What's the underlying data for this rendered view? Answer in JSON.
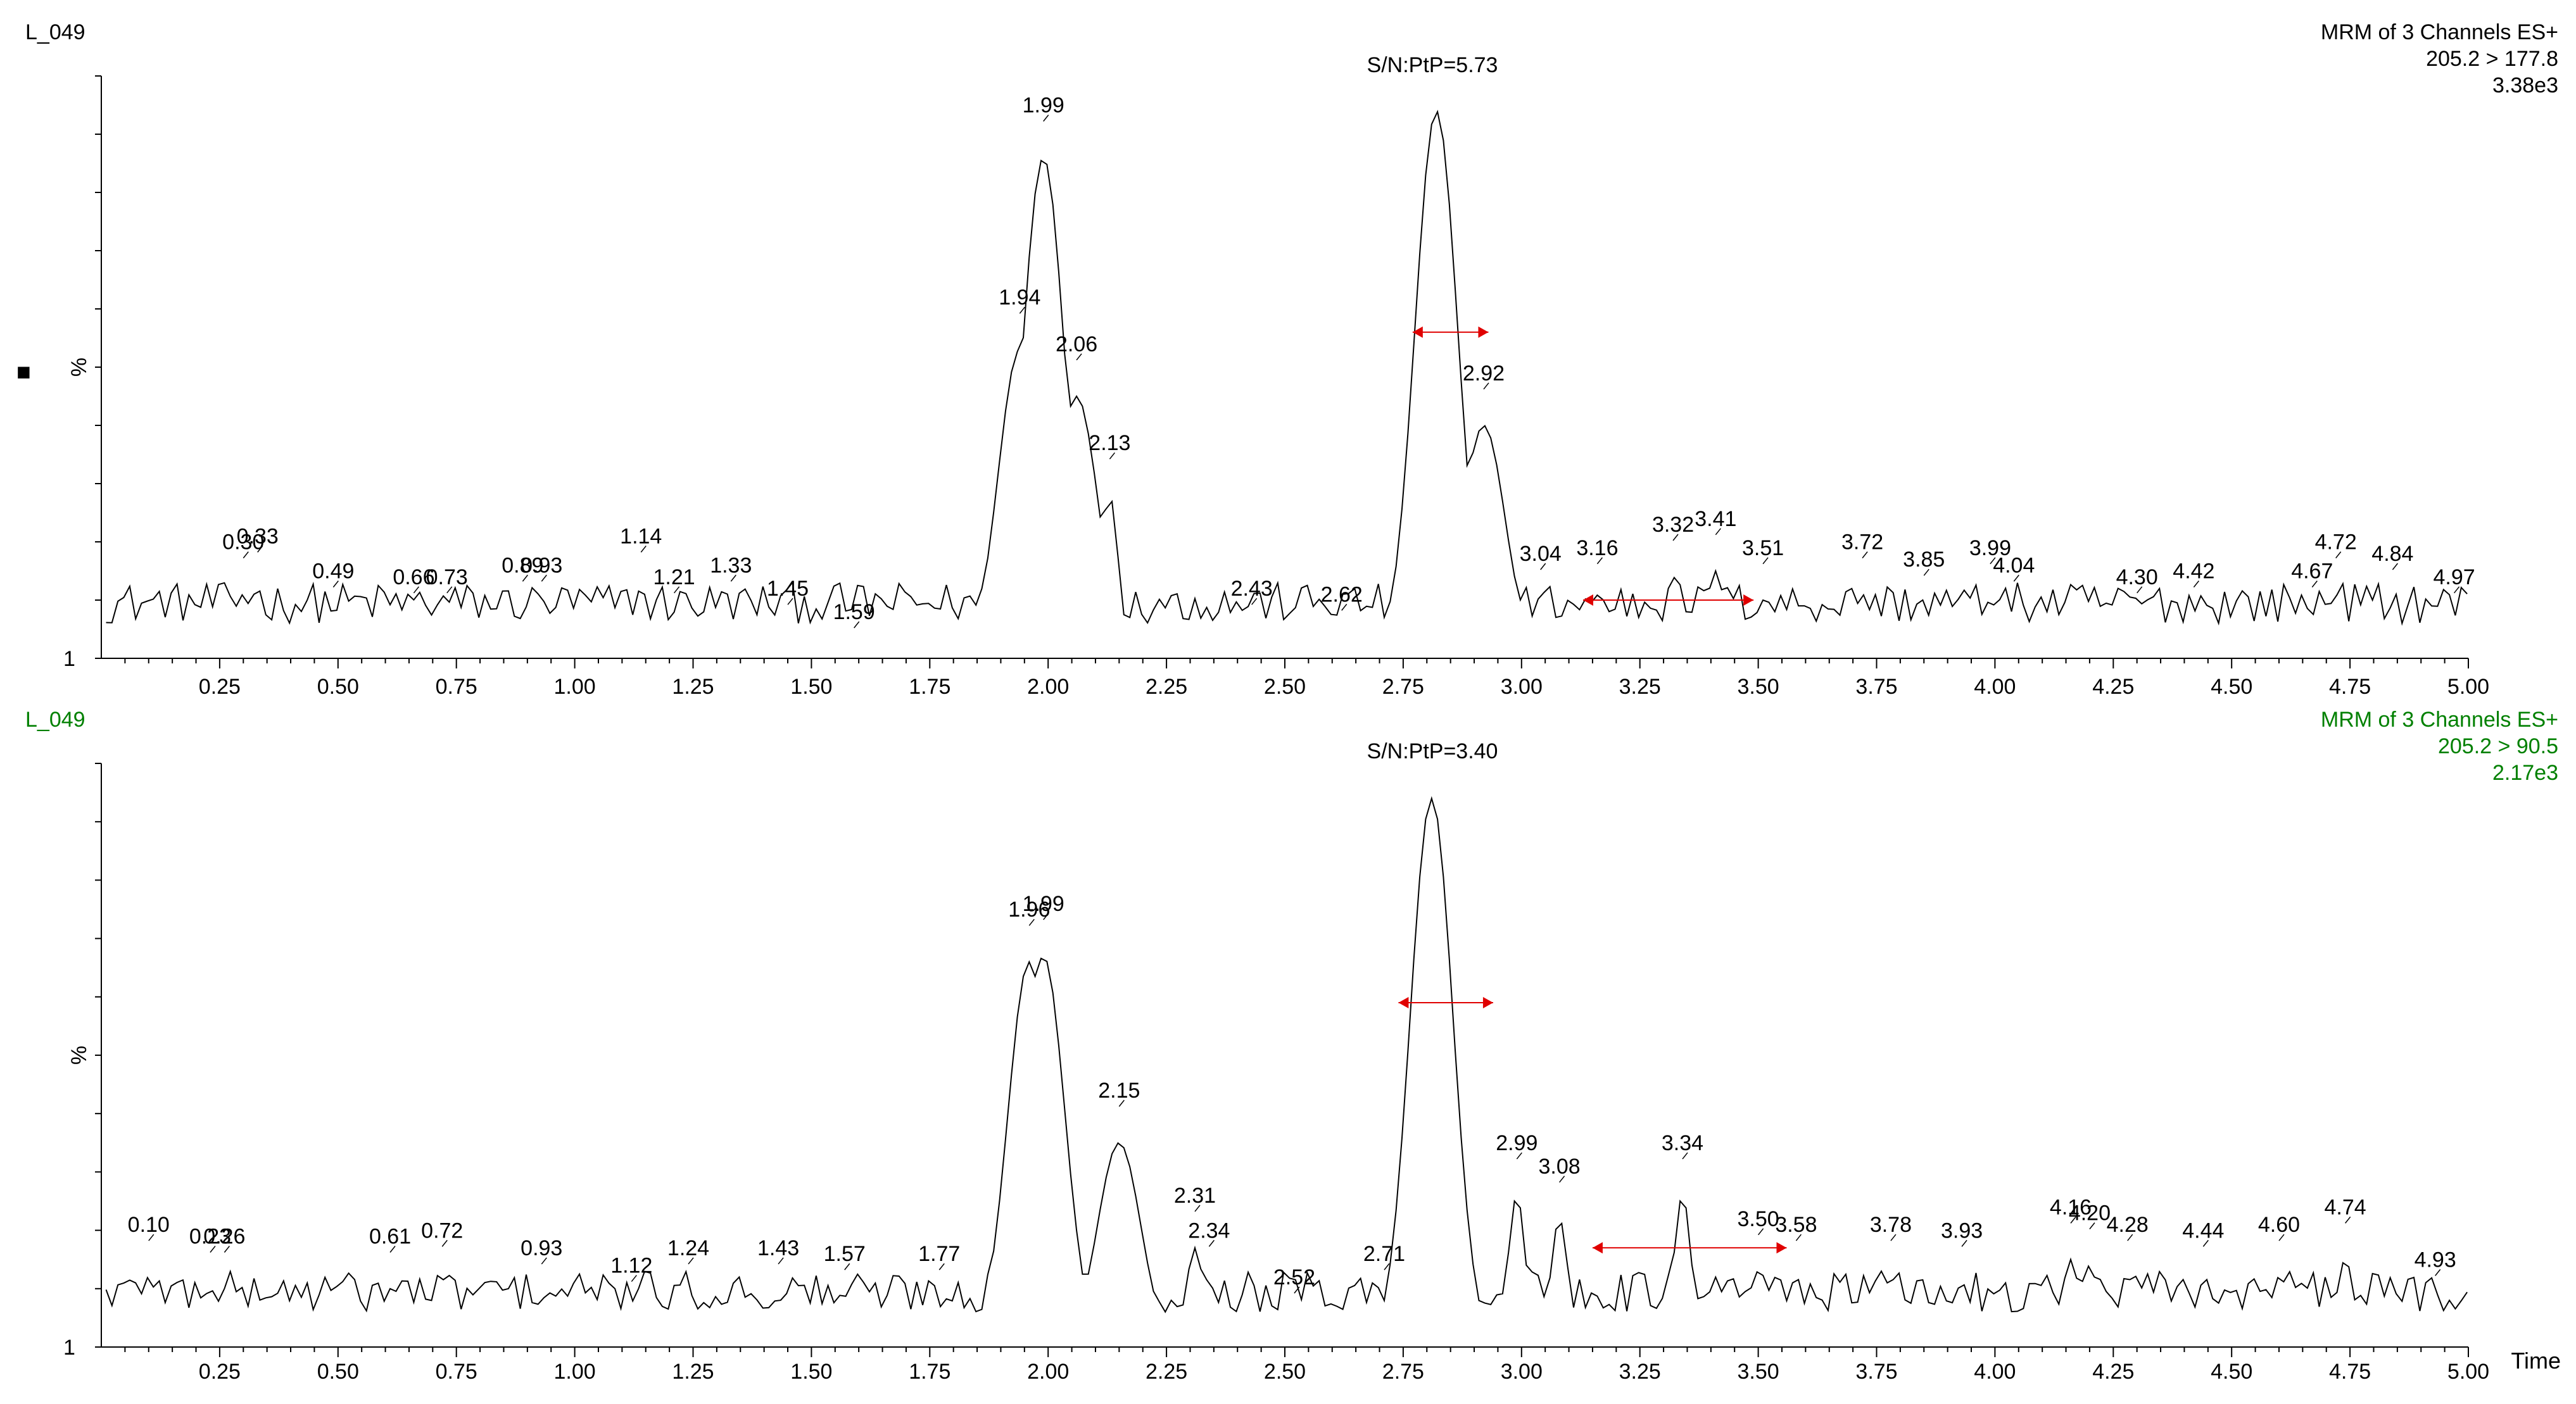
{
  "chart_data": [
    {
      "type": "line",
      "sample": "L_049",
      "header": [
        "MRM of 3 Channels ES+",
        "205.2 > 177.8",
        "3.38e3"
      ],
      "sn_label": "S/N:PtP=5.73",
      "ylabel": "%",
      "ymin_label": "1",
      "xlabel": "",
      "xlim": [
        0.0,
        5.0
      ],
      "ylim": [
        0,
        100
      ],
      "color": "#000000",
      "xticks": [
        "0.25",
        "0.50",
        "0.75",
        "1.00",
        "1.25",
        "1.50",
        "1.75",
        "2.00",
        "2.25",
        "2.50",
        "2.75",
        "3.00",
        "3.25",
        "3.50",
        "3.75",
        "4.00",
        "4.25",
        "4.50",
        "4.75",
        "5.00"
      ],
      "peaks": [
        {
          "t": 0.15,
          "y": 16
        },
        {
          "t": 0.3,
          "y": 17
        },
        {
          "t": 0.33,
          "y": 18
        },
        {
          "t": 0.49,
          "y": 12
        },
        {
          "t": 0.66,
          "y": 11
        },
        {
          "t": 0.73,
          "y": 11
        },
        {
          "t": 0.89,
          "y": 13
        },
        {
          "t": 0.93,
          "y": 13
        },
        {
          "t": 1.14,
          "y": 18
        },
        {
          "t": 1.21,
          "y": 11
        },
        {
          "t": 1.33,
          "y": 13
        },
        {
          "t": 1.45,
          "y": 9
        },
        {
          "t": 1.59,
          "y": 5
        },
        {
          "t": 1.94,
          "y": 59
        },
        {
          "t": 1.99,
          "y": 92
        },
        {
          "t": 2.06,
          "y": 51
        },
        {
          "t": 2.13,
          "y": 34
        },
        {
          "t": 2.43,
          "y": 9
        },
        {
          "t": 2.62,
          "y": 8
        },
        {
          "t": 2.82,
          "y": 100
        },
        {
          "t": 2.92,
          "y": 46
        },
        {
          "t": 3.04,
          "y": 15
        },
        {
          "t": 3.16,
          "y": 16
        },
        {
          "t": 3.32,
          "y": 20
        },
        {
          "t": 3.41,
          "y": 21
        },
        {
          "t": 3.51,
          "y": 16
        },
        {
          "t": 3.72,
          "y": 17
        },
        {
          "t": 3.85,
          "y": 14
        },
        {
          "t": 3.99,
          "y": 16
        },
        {
          "t": 4.04,
          "y": 13
        },
        {
          "t": 4.3,
          "y": 11
        },
        {
          "t": 4.42,
          "y": 12
        },
        {
          "t": 4.67,
          "y": 12
        },
        {
          "t": 4.72,
          "y": 17
        },
        {
          "t": 4.84,
          "y": 15
        },
        {
          "t": 4.97,
          "y": 11
        }
      ],
      "peak_labels": [
        {
          "t": 0.3,
          "text": "0.30"
        },
        {
          "t": 0.33,
          "text": "0.33"
        },
        {
          "t": 0.49,
          "text": "0.49"
        },
        {
          "t": 0.66,
          "text": "0.66"
        },
        {
          "t": 0.73,
          "text": "0.73"
        },
        {
          "t": 0.89,
          "text": "0.89"
        },
        {
          "t": 0.93,
          "text": "0.93"
        },
        {
          "t": 1.14,
          "text": "1.14"
        },
        {
          "t": 1.21,
          "text": "1.21"
        },
        {
          "t": 1.33,
          "text": "1.33"
        },
        {
          "t": 1.45,
          "text": "1.45"
        },
        {
          "t": 1.59,
          "text": "1.59"
        },
        {
          "t": 1.94,
          "text": "1.94"
        },
        {
          "t": 1.99,
          "text": "1.99"
        },
        {
          "t": 2.06,
          "text": "2.06"
        },
        {
          "t": 2.13,
          "text": "2.13"
        },
        {
          "t": 2.43,
          "text": "2.43"
        },
        {
          "t": 2.62,
          "text": "2.62"
        },
        {
          "t": 2.92,
          "text": "2.92"
        },
        {
          "t": 3.04,
          "text": "3.04"
        },
        {
          "t": 3.16,
          "text": "3.16"
        },
        {
          "t": 3.32,
          "text": "3.32"
        },
        {
          "t": 3.41,
          "text": "3.41"
        },
        {
          "t": 3.51,
          "text": "3.51"
        },
        {
          "t": 3.72,
          "text": "3.72"
        },
        {
          "t": 3.85,
          "text": "3.85"
        },
        {
          "t": 3.99,
          "text": "3.99"
        },
        {
          "t": 4.04,
          "text": "4.04"
        },
        {
          "t": 4.3,
          "text": "4.30"
        },
        {
          "t": 4.42,
          "text": "4.42"
        },
        {
          "t": 4.67,
          "text": "4.67"
        },
        {
          "t": 4.72,
          "text": "4.72"
        },
        {
          "t": 4.84,
          "text": "4.84"
        },
        {
          "t": 4.97,
          "text": "4.97"
        }
      ],
      "signal_window": [
        2.77,
        2.93
      ],
      "noise_window": [
        3.13,
        3.49
      ]
    },
    {
      "type": "line",
      "sample": "L_049",
      "header": [
        "MRM of 3 Channels ES+",
        "205.2 > 90.5",
        "2.17e3"
      ],
      "sn_label": "S/N:PtP=3.40",
      "ylabel": "%",
      "ymin_label": "1",
      "xlabel": "Time",
      "xlim": [
        0.0,
        5.0
      ],
      "ylim": [
        0,
        100
      ],
      "color": "#008000",
      "xticks": [
        "0.25",
        "0.50",
        "0.75",
        "1.00",
        "1.25",
        "1.50",
        "1.75",
        "2.00",
        "2.25",
        "2.50",
        "2.75",
        "3.00",
        "3.25",
        "3.50",
        "3.75",
        "4.00",
        "4.25",
        "4.50",
        "4.75",
        "5.00"
      ],
      "peaks": [
        {
          "t": 0.1,
          "y": 18
        },
        {
          "t": 0.23,
          "y": 16
        },
        {
          "t": 0.26,
          "y": 16
        },
        {
          "t": 0.61,
          "y": 16
        },
        {
          "t": 0.72,
          "y": 17
        },
        {
          "t": 0.93,
          "y": 14
        },
        {
          "t": 1.12,
          "y": 11
        },
        {
          "t": 1.24,
          "y": 14
        },
        {
          "t": 1.43,
          "y": 14
        },
        {
          "t": 1.57,
          "y": 13
        },
        {
          "t": 1.77,
          "y": 13
        },
        {
          "t": 1.96,
          "y": 72
        },
        {
          "t": 1.99,
          "y": 73
        },
        {
          "t": 2.15,
          "y": 41
        },
        {
          "t": 2.31,
          "y": 23
        },
        {
          "t": 2.34,
          "y": 17
        },
        {
          "t": 2.52,
          "y": 9
        },
        {
          "t": 2.71,
          "y": 13
        },
        {
          "t": 2.81,
          "y": 100
        },
        {
          "t": 2.99,
          "y": 32
        },
        {
          "t": 3.08,
          "y": 28
        },
        {
          "t": 3.34,
          "y": 32
        },
        {
          "t": 3.5,
          "y": 19
        },
        {
          "t": 3.58,
          "y": 18
        },
        {
          "t": 3.78,
          "y": 18
        },
        {
          "t": 3.93,
          "y": 17
        },
        {
          "t": 4.16,
          "y": 21
        },
        {
          "t": 4.2,
          "y": 20
        },
        {
          "t": 4.28,
          "y": 18
        },
        {
          "t": 4.44,
          "y": 17
        },
        {
          "t": 4.6,
          "y": 18
        },
        {
          "t": 4.74,
          "y": 21
        },
        {
          "t": 4.93,
          "y": 12
        }
      ],
      "peak_labels": [
        {
          "t": 0.1,
          "text": "0.10"
        },
        {
          "t": 0.23,
          "text": "0.23"
        },
        {
          "t": 0.26,
          "text": "0.26"
        },
        {
          "t": 0.61,
          "text": "0.61"
        },
        {
          "t": 0.72,
          "text": "0.72"
        },
        {
          "t": 0.93,
          "text": "0.93"
        },
        {
          "t": 1.12,
          "text": "1.12"
        },
        {
          "t": 1.24,
          "text": "1.24"
        },
        {
          "t": 1.43,
          "text": "1.43"
        },
        {
          "t": 1.57,
          "text": "1.57"
        },
        {
          "t": 1.77,
          "text": "1.77"
        },
        {
          "t": 1.96,
          "text": "1.96"
        },
        {
          "t": 1.99,
          "text": "1.99"
        },
        {
          "t": 2.15,
          "text": "2.15"
        },
        {
          "t": 2.31,
          "text": "2.31"
        },
        {
          "t": 2.34,
          "text": "2.34"
        },
        {
          "t": 2.52,
          "text": "2.52"
        },
        {
          "t": 2.71,
          "text": "2.71"
        },
        {
          "t": 2.99,
          "text": "2.99"
        },
        {
          "t": 3.08,
          "text": "3.08"
        },
        {
          "t": 3.34,
          "text": "3.34"
        },
        {
          "t": 3.5,
          "text": "3.50"
        },
        {
          "t": 3.58,
          "text": "3.58"
        },
        {
          "t": 3.78,
          "text": "3.78"
        },
        {
          "t": 3.93,
          "text": "3.93"
        },
        {
          "t": 4.16,
          "text": "4.16"
        },
        {
          "t": 4.2,
          "text": "4.20"
        },
        {
          "t": 4.28,
          "text": "4.28"
        },
        {
          "t": 4.44,
          "text": "4.44"
        },
        {
          "t": 4.6,
          "text": "4.60"
        },
        {
          "t": 4.74,
          "text": "4.74"
        },
        {
          "t": 4.93,
          "text": "4.93"
        }
      ],
      "signal_window": [
        2.74,
        2.94
      ],
      "noise_window": [
        3.15,
        3.56
      ]
    }
  ],
  "marker": "■"
}
